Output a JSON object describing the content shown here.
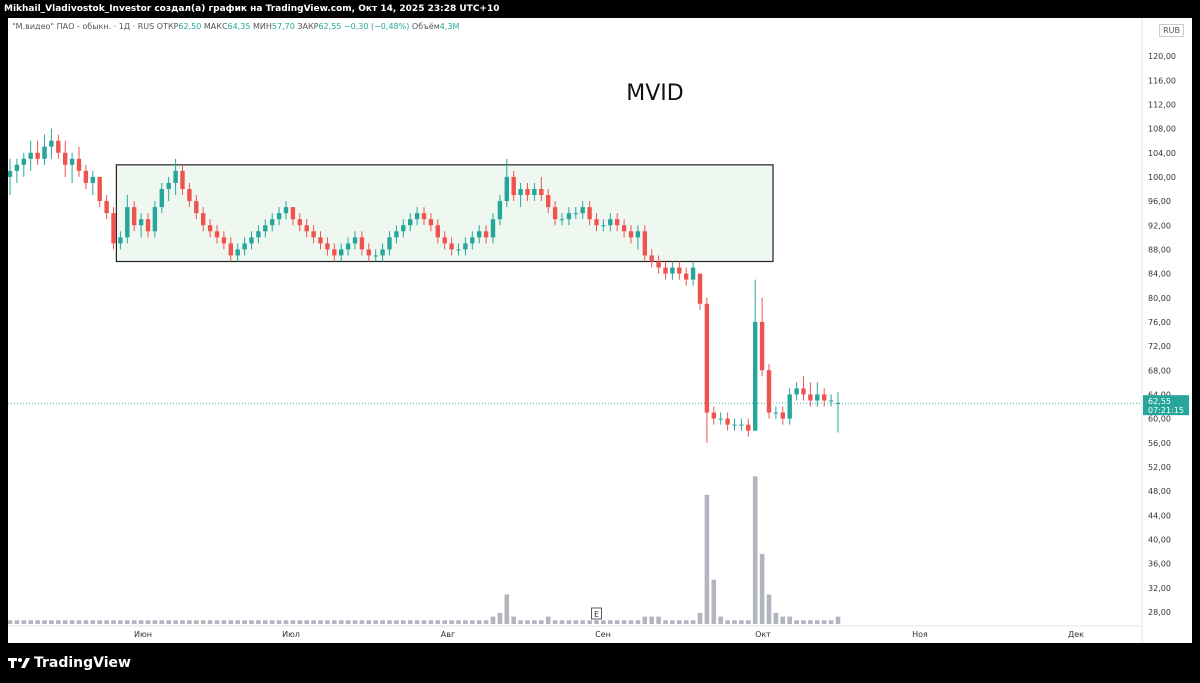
{
  "topbar": {
    "text": "Mikhail_Vladivostok_Investor создал(а) график на TradingView.com, Окт 14, 2025 23:28 UTC+10"
  },
  "legend": {
    "symbol": "\"М.видео\" ПАО - обыкн. · 1Д · RUS",
    "open_label": "ОТКР",
    "open": "62,50",
    "high_label": "МАКС",
    "high": "64,35",
    "low_label": "МИН",
    "low": "57,70",
    "close_label": "ЗАКР",
    "close": "62,55",
    "change": "−0,30 (−0,48%)",
    "volume_label": "Объём",
    "volume": "4,3M"
  },
  "currency": "RUB",
  "footer": {
    "logo_text": "TradingView"
  },
  "colors": {
    "up": "#26a69a",
    "down": "#ef5350",
    "volume": "#b2b5be",
    "box_fill": "#e8f5e9",
    "price_line": "#26a69a"
  },
  "chart_data": {
    "type": "candlestick",
    "title": "MVID",
    "y_ticks": [
      "120,00",
      "116,00",
      "112,00",
      "108,00",
      "104,00",
      "100,00",
      "96,00",
      "92,00",
      "88,00",
      "84,00",
      "80,00",
      "76,00",
      "72,00",
      "68,00",
      "64,00",
      "60,00",
      "56,00",
      "52,00",
      "48,00",
      "44,00",
      "40,00",
      "36,00",
      "32,00",
      "28,00"
    ],
    "ylim": [
      26,
      122
    ],
    "x_labels": [
      "Июн",
      "Июл",
      "Авг",
      "Сен",
      "Окт",
      "Ноя",
      "Дек"
    ],
    "last_price": {
      "value": "62,55",
      "countdown": "07:21:15"
    },
    "earnings_marker": "E",
    "range_box": {
      "from_index": 16,
      "to_index": 110,
      "high": 102,
      "low": 86
    },
    "candles": [
      [
        100,
        103,
        97,
        101
      ],
      [
        101,
        103,
        99,
        102
      ],
      [
        102,
        104,
        100,
        103
      ],
      [
        103,
        106,
        101,
        104
      ],
      [
        104,
        106,
        102,
        103
      ],
      [
        103,
        107,
        102,
        105
      ],
      [
        105,
        108,
        103,
        106
      ],
      [
        106,
        107,
        103,
        104
      ],
      [
        104,
        106,
        100,
        102
      ],
      [
        102,
        104,
        99,
        103
      ],
      [
        103,
        105,
        100,
        101
      ],
      [
        101,
        102,
        98,
        99
      ],
      [
        99,
        101,
        97,
        100
      ],
      [
        100,
        100,
        95,
        96
      ],
      [
        96,
        97,
        93,
        94
      ],
      [
        94,
        95,
        88,
        89
      ],
      [
        89,
        91,
        88,
        90
      ],
      [
        90,
        97,
        89,
        95
      ],
      [
        95,
        96,
        91,
        92
      ],
      [
        92,
        94,
        90,
        93
      ],
      [
        93,
        94,
        90,
        91
      ],
      [
        91,
        96,
        90,
        95
      ],
      [
        95,
        99,
        94,
        98
      ],
      [
        98,
        100,
        96,
        99
      ],
      [
        99,
        103,
        97,
        101
      ],
      [
        101,
        102,
        97,
        98
      ],
      [
        98,
        99,
        95,
        96
      ],
      [
        96,
        97,
        93,
        94
      ],
      [
        94,
        95,
        91,
        92
      ],
      [
        92,
        93,
        90,
        91
      ],
      [
        91,
        92,
        89,
        90
      ],
      [
        90,
        91,
        88,
        89
      ],
      [
        89,
        90,
        86,
        87
      ],
      [
        87,
        89,
        86,
        88
      ],
      [
        88,
        90,
        87,
        89
      ],
      [
        89,
        91,
        88,
        90
      ],
      [
        90,
        92,
        89,
        91
      ],
      [
        91,
        93,
        90,
        92
      ],
      [
        92,
        94,
        91,
        93
      ],
      [
        93,
        95,
        92,
        94
      ],
      [
        94,
        96,
        93,
        95
      ],
      [
        95,
        95,
        92,
        93
      ],
      [
        93,
        94,
        91,
        92
      ],
      [
        92,
        93,
        90,
        91
      ],
      [
        91,
        92,
        89,
        90
      ],
      [
        90,
        91,
        88,
        89
      ],
      [
        89,
        90,
        87,
        88
      ],
      [
        88,
        89,
        86,
        87
      ],
      [
        87,
        89,
        86,
        88
      ],
      [
        88,
        90,
        87,
        89
      ],
      [
        89,
        91,
        88,
        90
      ],
      [
        90,
        91,
        87,
        88
      ],
      [
        88,
        89,
        86,
        87
      ],
      [
        87,
        88,
        86,
        87
      ],
      [
        87,
        89,
        86,
        88
      ],
      [
        88,
        91,
        87,
        90
      ],
      [
        90,
        92,
        89,
        91
      ],
      [
        91,
        93,
        90,
        92
      ],
      [
        92,
        94,
        91,
        93
      ],
      [
        93,
        95,
        92,
        94
      ],
      [
        94,
        95,
        92,
        93
      ],
      [
        93,
        94,
        91,
        92
      ],
      [
        92,
        93,
        89,
        90
      ],
      [
        90,
        91,
        88,
        89
      ],
      [
        89,
        90,
        87,
        88
      ],
      [
        88,
        89,
        87,
        88
      ],
      [
        88,
        90,
        87,
        89
      ],
      [
        89,
        91,
        88,
        90
      ],
      [
        90,
        92,
        89,
        91
      ],
      [
        91,
        92,
        89,
        90
      ],
      [
        90,
        94,
        89,
        93
      ],
      [
        93,
        97,
        92,
        96
      ],
      [
        96,
        103,
        95,
        100
      ],
      [
        100,
        101,
        96,
        97
      ],
      [
        97,
        99,
        95,
        98
      ],
      [
        98,
        99,
        96,
        97
      ],
      [
        97,
        99,
        96,
        98
      ],
      [
        98,
        100,
        96,
        97
      ],
      [
        97,
        98,
        94,
        95
      ],
      [
        95,
        96,
        92,
        93
      ],
      [
        93,
        94,
        92,
        93
      ],
      [
        93,
        95,
        92,
        94
      ],
      [
        94,
        95,
        93,
        94
      ],
      [
        94,
        96,
        93,
        95
      ],
      [
        95,
        96,
        92,
        93
      ],
      [
        93,
        94,
        91,
        92
      ],
      [
        92,
        93,
        91,
        92
      ],
      [
        92,
        94,
        91,
        93
      ],
      [
        93,
        94,
        91,
        92
      ],
      [
        92,
        93,
        90,
        91
      ],
      [
        91,
        92,
        89,
        90
      ],
      [
        90,
        92,
        88,
        91
      ],
      [
        91,
        92,
        86,
        87
      ],
      [
        87,
        88,
        85,
        86
      ],
      [
        86,
        87,
        84,
        85
      ],
      [
        85,
        86,
        83,
        84
      ],
      [
        84,
        86,
        83,
        85
      ],
      [
        85,
        86,
        83,
        84
      ],
      [
        84,
        85,
        82,
        83
      ],
      [
        83,
        86,
        82,
        85
      ],
      [
        84,
        84,
        78,
        79
      ],
      [
        79,
        80,
        56,
        61
      ],
      [
        61,
        62,
        59,
        60
      ],
      [
        60,
        61,
        59,
        60
      ],
      [
        60,
        61,
        58,
        59
      ],
      [
        59,
        60,
        58,
        59
      ],
      [
        59,
        60,
        58,
        59
      ],
      [
        59,
        60,
        57,
        58
      ],
      [
        58,
        83,
        58,
        76
      ],
      [
        76,
        80,
        67,
        68
      ],
      [
        68,
        69,
        60,
        61
      ],
      [
        61,
        62,
        60,
        61
      ],
      [
        61,
        62,
        59,
        60
      ],
      [
        60,
        65,
        59,
        64
      ],
      [
        64,
        66,
        63,
        65
      ],
      [
        65,
        67,
        63,
        64
      ],
      [
        64,
        66,
        62,
        63
      ],
      [
        63,
        66,
        62,
        64
      ],
      [
        64,
        65,
        62,
        63
      ],
      [
        63,
        64,
        62,
        63
      ],
      [
        62.5,
        64.35,
        57.7,
        62.55
      ]
    ],
    "volumes": [
      1,
      1,
      1,
      1,
      1,
      1,
      1,
      1,
      1,
      1,
      1,
      1,
      1,
      1,
      1,
      1,
      1,
      1,
      1,
      1,
      1,
      1,
      1,
      1,
      1,
      1,
      1,
      1,
      1,
      1,
      1,
      1,
      1,
      1,
      1,
      1,
      1,
      1,
      1,
      1,
      1,
      1,
      1,
      1,
      1,
      1,
      1,
      1,
      1,
      1,
      1,
      1,
      1,
      1,
      1,
      1,
      1,
      1,
      1,
      1,
      1,
      1,
      1,
      1,
      1,
      1,
      1,
      1,
      1,
      1,
      2,
      3,
      8,
      2,
      1,
      1,
      1,
      1,
      2,
      1,
      1,
      1,
      1,
      1,
      1,
      1,
      1,
      1,
      1,
      1,
      1,
      1,
      2,
      2,
      2,
      1,
      1,
      1,
      1,
      1,
      3,
      35,
      12,
      2,
      1,
      1,
      1,
      1,
      40,
      19,
      8,
      3,
      2,
      2,
      1,
      1,
      1,
      1,
      1,
      1,
      2
    ],
    "volume_max": 42
  }
}
